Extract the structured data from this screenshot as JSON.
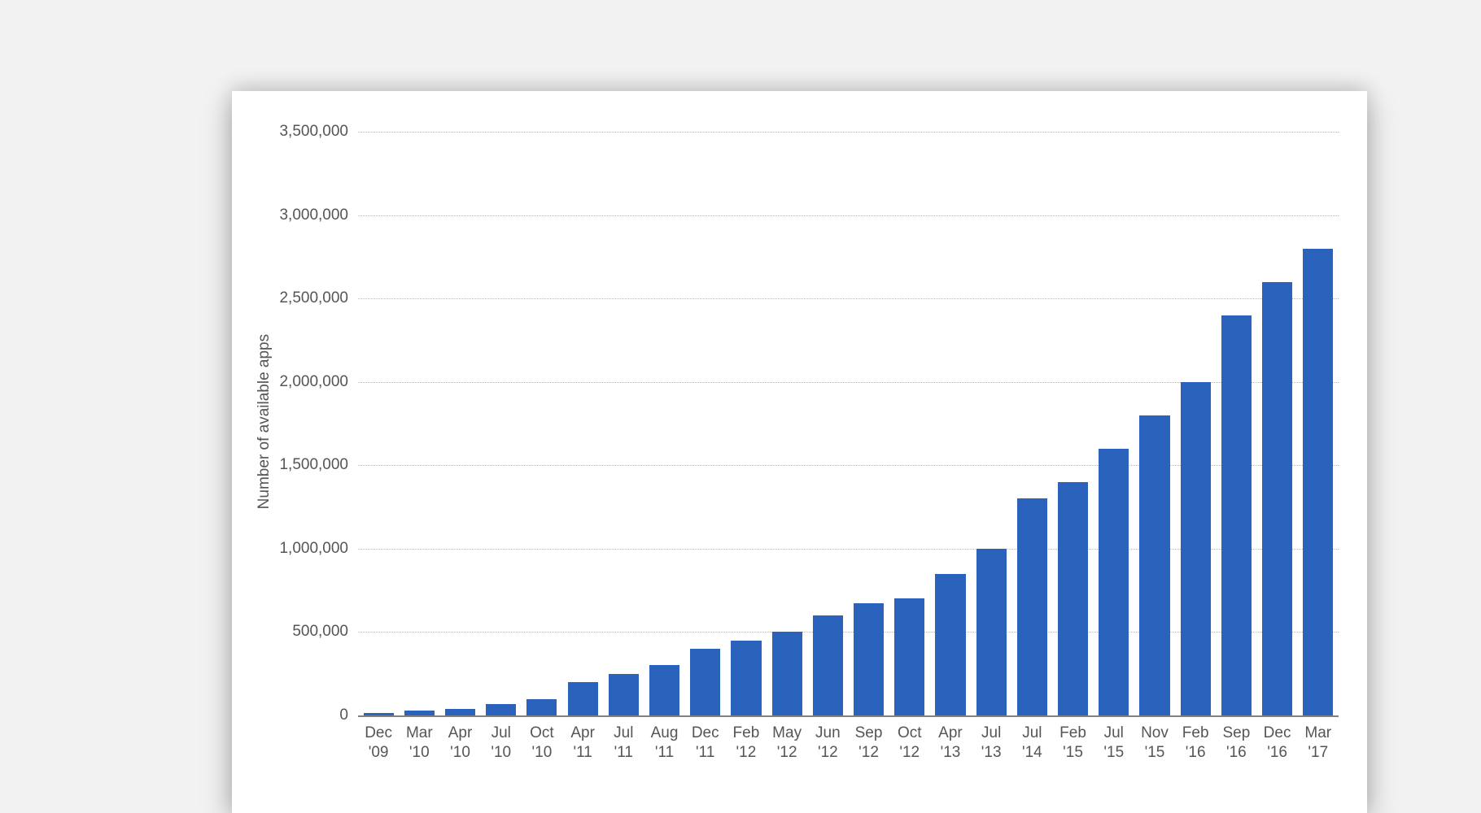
{
  "page": {
    "background_color": "#f2f2f2"
  },
  "chart": {
    "type": "bar",
    "card_background": "#ffffff",
    "ylabel": "Number of available apps",
    "ylabel_fontsize": 19,
    "ylabel_color": "#555555",
    "ylim": [
      0,
      3500000
    ],
    "ytick_step": 500000,
    "yticks": [
      0,
      500000,
      1000000,
      1500000,
      2000000,
      2500000,
      3000000,
      3500000
    ],
    "ytick_labels": [
      "0",
      "500,000",
      "1,000,000",
      "1,500,000",
      "2,000,000",
      "2,500,000",
      "3,000,000",
      "3,500,000"
    ],
    "ytick_fontsize": 19,
    "ytick_color": "#555555",
    "grid_color": "#b8b8b8",
    "grid_style": "dotted",
    "baseline_color": "#808080",
    "bar_color": "#2a62bc",
    "bar_width_ratio": 0.74,
    "xtick_fontsize": 19,
    "xtick_color": "#555555",
    "categories": [
      {
        "line1": "Dec",
        "line2": "'09"
      },
      {
        "line1": "Mar",
        "line2": "'10"
      },
      {
        "line1": "Apr",
        "line2": "'10"
      },
      {
        "line1": "Jul",
        "line2": "'10"
      },
      {
        "line1": "Oct",
        "line2": "'10"
      },
      {
        "line1": "Apr",
        "line2": "'11"
      },
      {
        "line1": "Jul",
        "line2": "'11"
      },
      {
        "line1": "Aug",
        "line2": "'11"
      },
      {
        "line1": "Dec",
        "line2": "'11"
      },
      {
        "line1": "Feb",
        "line2": "'12"
      },
      {
        "line1": "May",
        "line2": "'12"
      },
      {
        "line1": "Jun",
        "line2": "'12"
      },
      {
        "line1": "Sep",
        "line2": "'12"
      },
      {
        "line1": "Oct",
        "line2": "'12"
      },
      {
        "line1": "Apr",
        "line2": "'13"
      },
      {
        "line1": "Jul",
        "line2": "'13"
      },
      {
        "line1": "Jul",
        "line2": "'14"
      },
      {
        "line1": "Feb",
        "line2": "'15"
      },
      {
        "line1": "Jul",
        "line2": "'15"
      },
      {
        "line1": "Nov",
        "line2": "'15"
      },
      {
        "line1": "Feb",
        "line2": "'16"
      },
      {
        "line1": "Sep",
        "line2": "'16"
      },
      {
        "line1": "Dec",
        "line2": "'16"
      },
      {
        "line1": "Mar",
        "line2": "'17"
      }
    ],
    "values": [
      16000,
      30000,
      38000,
      70000,
      100000,
      200000,
      250000,
      300000,
      400000,
      450000,
      500000,
      600000,
      675000,
      700000,
      850000,
      1000000,
      1300000,
      1400000,
      1600000,
      1800000,
      2000000,
      2400000,
      2600000,
      2800000
    ]
  }
}
